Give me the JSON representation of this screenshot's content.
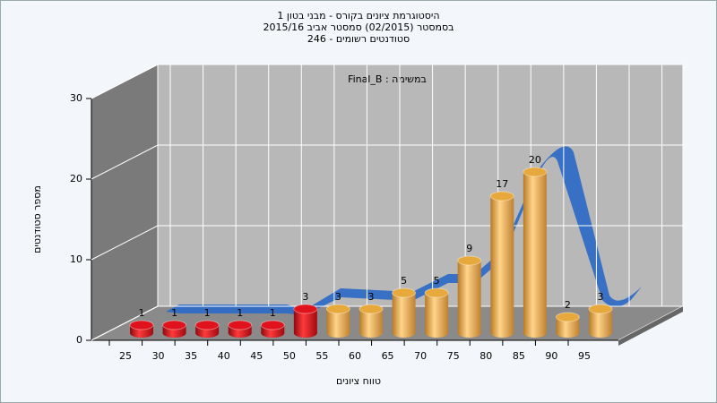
{
  "chart_data": {
    "type": "bar",
    "title": [
      "היסטוגרמת ציונים בקורס - מבני בטון 1",
      "בסמסטר  (02/2015)  סמסטר אביב 2015/16",
      "סטודנטים רשומים - 246"
    ],
    "annotation": "במשימה : Final_B",
    "x_label": "טווח ציונים",
    "y_label": "מספר סטודנטים",
    "categories": [
      "25",
      "30",
      "35",
      "40",
      "45",
      "50",
      "55",
      "60",
      "65",
      "70",
      "75",
      "80",
      "85",
      "90",
      "95"
    ],
    "values": [
      1,
      1,
      1,
      1,
      1,
      3,
      3,
      3,
      5,
      5,
      9,
      17,
      20,
      2,
      3
    ],
    "colors": [
      "#e0121b",
      "#e0121b",
      "#e0121b",
      "#e0121b",
      "#e0121b",
      "#e0121b",
      "#e8a93c",
      "#e8a93c",
      "#e8a93c",
      "#e8a93c",
      "#e8a93c",
      "#e8a93c",
      "#e8a93c",
      "#e8a93c",
      "#e8a93c"
    ],
    "ylim": [
      0,
      30
    ],
    "yticks": [
      0,
      10,
      20,
      30
    ],
    "grid": true
  }
}
